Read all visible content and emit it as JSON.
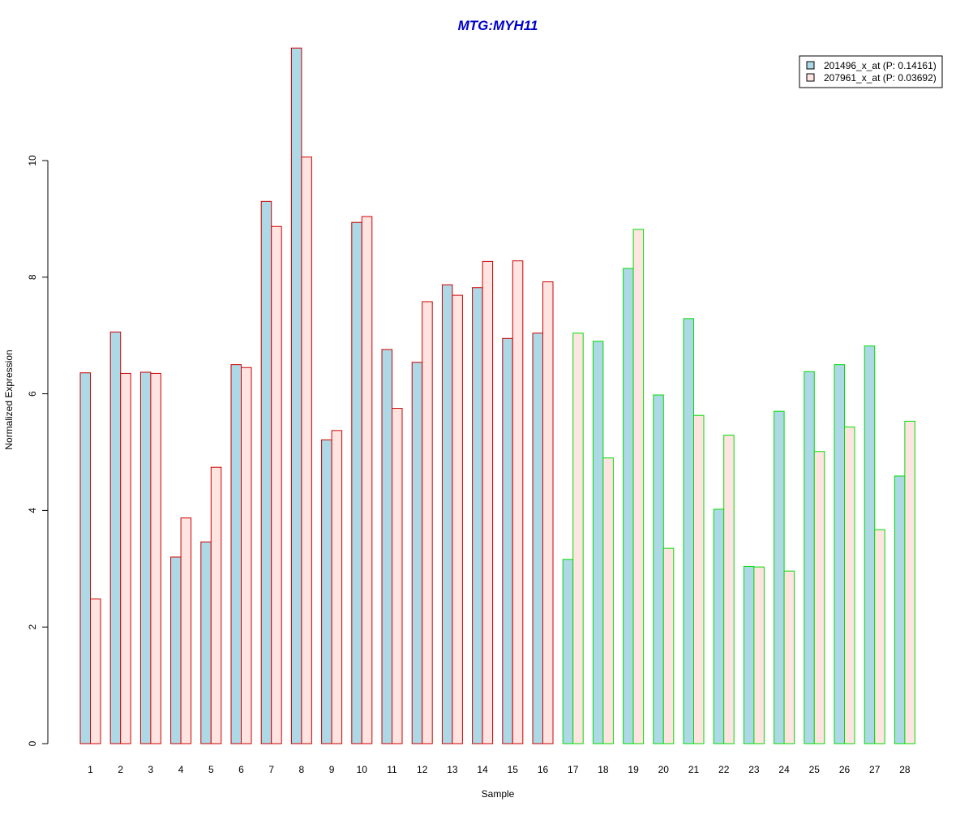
{
  "chart_data": {
    "type": "bar",
    "title": "MTG:MYH11",
    "xlabel": "Sample",
    "ylabel": "Normalized Expression",
    "ylim": [
      0,
      12
    ],
    "yticks": [
      0,
      2,
      4,
      6,
      8,
      10
    ],
    "grid": false,
    "legend_position": "top-right",
    "categories": [
      "1",
      "2",
      "3",
      "4",
      "5",
      "6",
      "7",
      "8",
      "9",
      "10",
      "11",
      "12",
      "13",
      "14",
      "15",
      "16",
      "17",
      "18",
      "19",
      "20",
      "21",
      "22",
      "23",
      "24",
      "25",
      "26",
      "27",
      "28"
    ],
    "group_edge_colors": [
      "#cc0000",
      "#cc0000",
      "#cc0000",
      "#cc0000",
      "#cc0000",
      "#cc0000",
      "#cc0000",
      "#cc0000",
      "#cc0000",
      "#cc0000",
      "#cc0000",
      "#cc0000",
      "#cc0000",
      "#cc0000",
      "#cc0000",
      "#cc0000",
      "#00dd00",
      "#00dd00",
      "#00dd00",
      "#00dd00",
      "#00dd00",
      "#00dd00",
      "#00dd00",
      "#00dd00",
      "#00dd00",
      "#00dd00",
      "#00dd00",
      "#00dd00"
    ],
    "series": [
      {
        "name": "201496_x_at (P: 0.14161)",
        "fill": "#add8e6",
        "values": [
          6.36,
          7.06,
          6.37,
          3.2,
          3.46,
          6.5,
          9.3,
          11.93,
          5.21,
          8.94,
          6.76,
          6.54,
          7.87,
          7.82,
          6.95,
          7.04,
          3.16,
          6.9,
          8.15,
          5.98,
          7.29,
          4.02,
          3.04,
          5.7,
          6.38,
          6.5,
          6.82,
          4.59
        ]
      },
      {
        "name": "207961_x_at (P: 0.03692)",
        "fill": "#ffe4e1",
        "values": [
          2.48,
          6.35,
          6.35,
          3.87,
          4.74,
          6.45,
          8.87,
          10.06,
          5.37,
          9.04,
          5.75,
          7.58,
          7.69,
          8.27,
          8.28,
          7.92,
          7.04,
          4.9,
          8.82,
          3.35,
          5.63,
          5.29,
          3.03,
          2.96,
          5.01,
          5.43,
          3.67,
          5.53
        ]
      }
    ]
  },
  "colors": {
    "title": "#0000cc",
    "axis": "#000000",
    "background": "#ffffff"
  }
}
